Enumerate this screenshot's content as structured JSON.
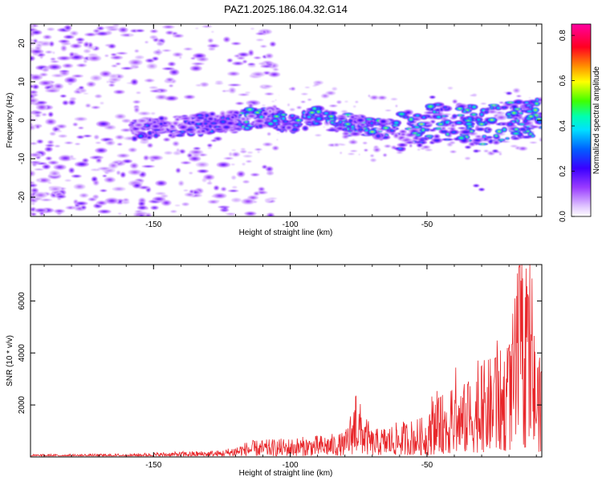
{
  "title": "PAZ1.2025.186.04.32.G14",
  "chart_data": [
    {
      "type": "heatmap",
      "xlabel": "Height of straight line (km)",
      "ylabel": "Frequency (Hz)",
      "xlim": [
        -195,
        -8
      ],
      "ylim": [
        -25,
        25
      ],
      "xticks": [
        -150,
        -100,
        -50
      ],
      "yticks": [
        -20,
        -10,
        0,
        10,
        20
      ],
      "colorbar": {
        "label": "Normalized spectral amplitude",
        "range": [
          0,
          0.85
        ],
        "ticks": [
          0.0,
          0.2,
          0.4,
          0.6,
          0.8
        ],
        "colormap": "rainbow (white-violet-blue-cyan-green-yellow-red-magenta)"
      },
      "signal_band_center_hz": [
        {
          "x": -150,
          "y": -2.0
        },
        {
          "x": -140,
          "y": -1.5
        },
        {
          "x": -130,
          "y": -1.0
        },
        {
          "x": -120,
          "y": 0.0
        },
        {
          "x": -110,
          "y": 0.8
        },
        {
          "x": -100,
          "y": -0.5
        },
        {
          "x": -90,
          "y": 1.0
        },
        {
          "x": -80,
          "y": -1.0
        },
        {
          "x": -70,
          "y": -2.0
        },
        {
          "x": -60,
          "y": -3.0
        },
        {
          "x": -50,
          "y": -1.0
        },
        {
          "x": -40,
          "y": 0.0
        },
        {
          "x": -30,
          "y": -2.0
        },
        {
          "x": -20,
          "y": 0.0
        },
        {
          "x": -10,
          "y": 0.5
        }
      ]
    },
    {
      "type": "line",
      "xlabel": "Height of straight line (km)",
      "ylabel": "SNR (10 * v/v)",
      "xlim": [
        -195,
        -8
      ],
      "ylim": [
        0,
        7400
      ],
      "xticks": [
        -150,
        -100,
        -50
      ],
      "yticks": [
        2000,
        4000,
        6000
      ],
      "color": "#e8262a",
      "series": [
        {
          "points": [
            {
              "x": -195,
              "y": 100
            },
            {
              "x": -160,
              "y": 120
            },
            {
              "x": -140,
              "y": 200
            },
            {
              "x": -125,
              "y": 250
            },
            {
              "x": -115,
              "y": 600
            },
            {
              "x": -100,
              "y": 700
            },
            {
              "x": -90,
              "y": 800
            },
            {
              "x": -80,
              "y": 900
            },
            {
              "x": -76,
              "y": 2350
            },
            {
              "x": -70,
              "y": 1000
            },
            {
              "x": -60,
              "y": 1300
            },
            {
              "x": -50,
              "y": 1500
            },
            {
              "x": -45,
              "y": 2300
            },
            {
              "x": -35,
              "y": 2800
            },
            {
              "x": -30,
              "y": 3500
            },
            {
              "x": -25,
              "y": 3800
            },
            {
              "x": -20,
              "y": 4200
            },
            {
              "x": -16,
              "y": 7400
            },
            {
              "x": -13,
              "y": 6200
            },
            {
              "x": -8,
              "y": 3200
            }
          ]
        }
      ]
    }
  ]
}
